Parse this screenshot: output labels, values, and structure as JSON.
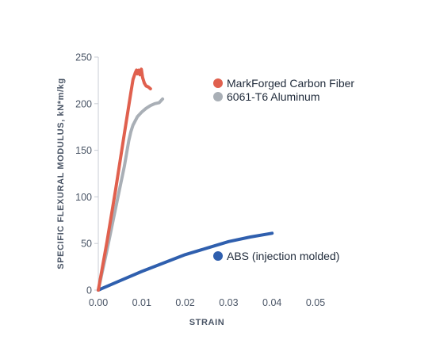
{
  "chart_data": {
    "type": "line",
    "title": "",
    "xlabel": "STRAIN",
    "ylabel": "SPECIFIC FLEXURAL MODULUS, kN*m/kg",
    "xlim": [
      0,
      0.05
    ],
    "ylim": [
      0,
      250
    ],
    "x_ticks": [
      "0.00",
      "0.01",
      "0.02",
      "0.03",
      "0.04",
      "0.05"
    ],
    "y_ticks": [
      "0",
      "50",
      "100",
      "150",
      "200",
      "250"
    ],
    "grid": false,
    "legend_placement": "top-right",
    "series": [
      {
        "name": "MarkForged Carbon Fiber",
        "color": "#e0604e",
        "x": [
          0,
          0.002,
          0.004,
          0.006,
          0.0075,
          0.008,
          0.0085,
          0.0088,
          0.009,
          0.0093,
          0.0096,
          0.0099,
          0.0102,
          0.0106,
          0.011,
          0.0115,
          0.012
        ],
        "y": [
          0,
          52,
          108,
          168,
          212,
          226,
          233,
          236,
          232,
          236,
          231,
          237,
          228,
          222,
          219,
          218,
          216
        ]
      },
      {
        "name": "6061-T6 Aluminum",
        "color": "#a9afb6",
        "x": [
          0,
          0.002,
          0.004,
          0.006,
          0.007,
          0.0075,
          0.008,
          0.009,
          0.01,
          0.011,
          0.012,
          0.013,
          0.014,
          0.0148
        ],
        "y": [
          0,
          43,
          88,
          133,
          160,
          170,
          177,
          186,
          191,
          195,
          198,
          200,
          201,
          205
        ]
      },
      {
        "name": "ABS (injection molded)",
        "color": "#2f5fae",
        "x": [
          0,
          0.005,
          0.01,
          0.015,
          0.02,
          0.025,
          0.03,
          0.035,
          0.04
        ],
        "y": [
          0,
          10,
          20,
          29,
          38,
          45,
          52,
          57,
          61
        ]
      }
    ],
    "legend": [
      {
        "label": "MarkForged Carbon Fiber",
        "color": "#e0604e"
      },
      {
        "label": "6061-T6 Aluminum",
        "color": "#a9afb6"
      }
    ],
    "annotations": [
      {
        "label": "ABS (injection molded)",
        "color": "#2f5fae"
      }
    ]
  }
}
